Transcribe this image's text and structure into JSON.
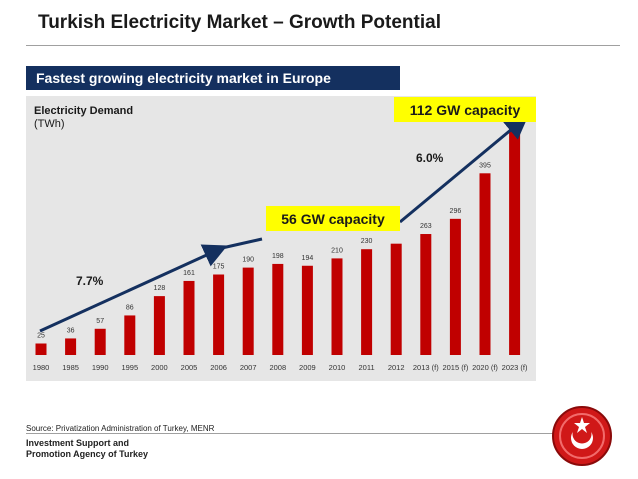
{
  "page": {
    "title": "Turkish Electricity Market – Growth Potential",
    "subtitle": "Fastest growing electricity market in Europe",
    "source": "Source: Privatization Administration of Turkey, MENR",
    "agency_line1": "Investment Support and",
    "agency_line2": "Promotion Agency of Turkey"
  },
  "chart_data": {
    "type": "bar",
    "title": "Electricity Demand",
    "ylabel": "(TWh)",
    "categories": [
      "1980",
      "1985",
      "1990",
      "1995",
      "2000",
      "2005",
      "2006",
      "2007",
      "2008",
      "2009",
      "2010",
      "2011",
      "2012",
      "2013 (f)",
      "2015 (f)",
      "2020 (f)",
      "2023 (f)"
    ],
    "values": [
      25,
      36,
      57,
      86,
      128,
      161,
      175,
      190,
      198,
      194,
      210,
      230,
      242,
      263,
      296,
      395,
      500
    ],
    "data_labels": [
      "25",
      "36",
      "57",
      "86",
      "128",
      "161",
      "175",
      "190",
      "198",
      "194",
      "210",
      "230",
      "",
      "263",
      "296",
      "395",
      ""
    ],
    "ylim": [
      0,
      500
    ],
    "grid": false,
    "annotations": {
      "growth_1": "7.7%",
      "growth_2": "6.0%",
      "capacity_1": "56 GW capacity",
      "capacity_2": "112 GW capacity"
    }
  },
  "colors": {
    "bar": "#c00000",
    "arrow": "#14305f",
    "subtitle_bg": "#14305f",
    "callout_bg": "#ffff00",
    "panel_bg": "#e6e6e6"
  }
}
